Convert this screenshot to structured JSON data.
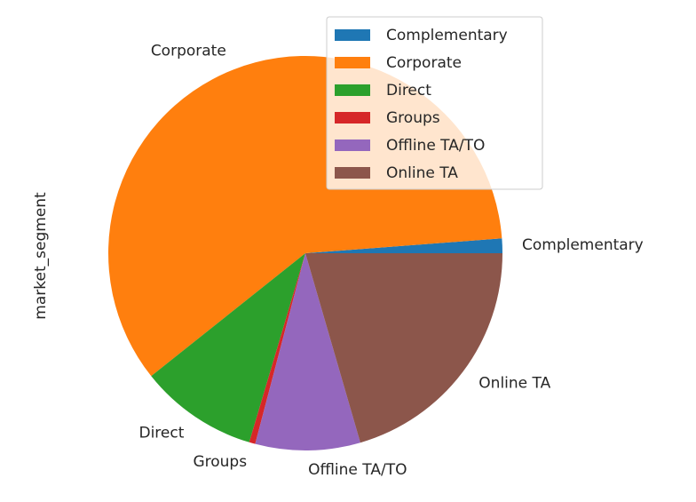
{
  "chart_data": {
    "type": "pie",
    "ylabel": "market_segment",
    "slices": [
      {
        "label": "Complementary",
        "value": 1.2,
        "color": "#1f77b4"
      },
      {
        "label": "Corporate",
        "value": 59.5,
        "color": "#ff7f0e"
      },
      {
        "label": "Direct",
        "value": 9.7,
        "color": "#2ca02c"
      },
      {
        "label": "Groups",
        "value": 0.5,
        "color": "#d62728"
      },
      {
        "label": "Offline TA/TO",
        "value": 8.6,
        "color": "#9467bd"
      },
      {
        "label": "Online TA",
        "value": 20.5,
        "color": "#8c564b"
      }
    ],
    "legend": {
      "position": "top-right",
      "entries": [
        "Complementary",
        "Corporate",
        "Direct",
        "Groups",
        "Offline TA/TO",
        "Online TA"
      ]
    },
    "start_angle_deg": 0,
    "direction": "counterclockwise"
  }
}
